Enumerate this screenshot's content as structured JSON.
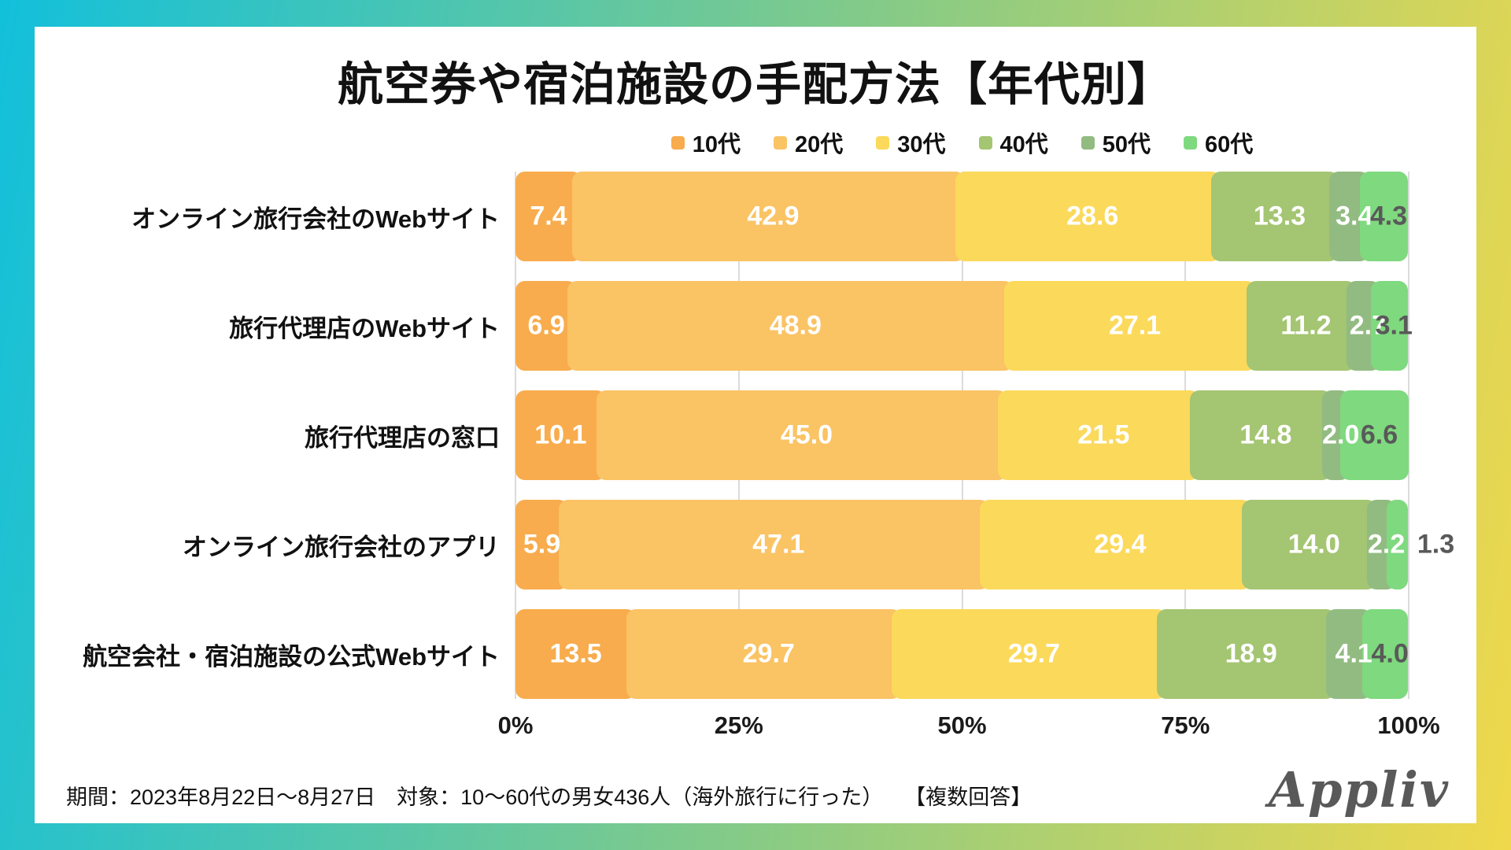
{
  "title": "航空券や宿泊施設の手配方法【年代別】",
  "chart_data": {
    "type": "bar",
    "stacked": true,
    "orientation": "horizontal",
    "title": "航空券や宿泊施設の手配方法【年代別】",
    "categories": [
      "オンライン旅行会社のWebサイト",
      "旅行代理店のWebサイト",
      "旅行代理店の窓口",
      "オンライン旅行会社のアプリ",
      "航空会社・宿泊施設の公式Webサイト"
    ],
    "series": [
      {
        "name": "10代",
        "color": "#F8AC4D",
        "values": [
          7.4,
          6.9,
          10.1,
          5.9,
          13.5
        ]
      },
      {
        "name": "20代",
        "color": "#FAC364",
        "values": [
          42.9,
          48.9,
          45.0,
          47.1,
          29.7
        ]
      },
      {
        "name": "30代",
        "color": "#FBD95B",
        "values": [
          28.6,
          27.1,
          21.5,
          29.4,
          29.7
        ]
      },
      {
        "name": "40代",
        "color": "#A4C572",
        "values": [
          13.3,
          11.2,
          14.8,
          14.0,
          18.9
        ]
      },
      {
        "name": "50代",
        "color": "#92BB82",
        "values": [
          3.4,
          2.7,
          2.0,
          2.2,
          4.1
        ]
      },
      {
        "name": "60代",
        "color": "#7FD97F",
        "values": [
          4.3,
          3.1,
          6.6,
          1.3,
          4.0
        ]
      }
    ],
    "x_ticks": [
      "0%",
      "25%",
      "50%",
      "75%",
      "100%"
    ],
    "xlim": [
      0,
      100
    ],
    "legend_position": "top",
    "grid": true,
    "value_label_color": "#FFFFFF",
    "last_value_label_color": "#595959"
  },
  "footer": {
    "text": "期間：2023年8月22日〜8月27日　対象：10〜60代の男女436人（海外旅行に行った）　　【複数回答】"
  },
  "logo": {
    "text": "Appliv"
  },
  "colors": {
    "frame_gradient_start": "#12C0DB",
    "frame_gradient_mid": "#82CA89",
    "frame_gradient_end": "#F0D84B",
    "gridline": "#DBDBDB",
    "text": "#111111",
    "logo_grey": "#595959"
  }
}
